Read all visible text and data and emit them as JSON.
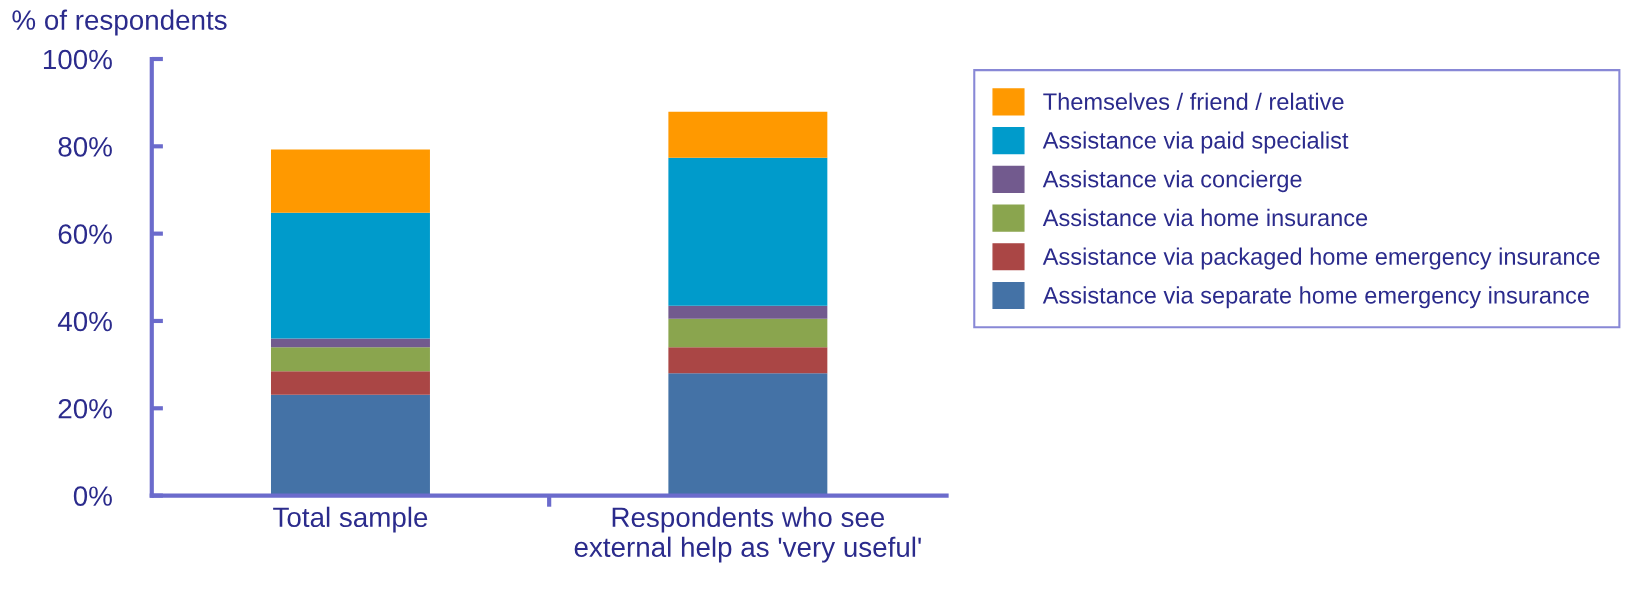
{
  "chart_data": {
    "type": "bar",
    "stacked": true,
    "ylabel": "% of respondents",
    "categories": [
      "Total sample",
      "Respondents who see\nexternal help as 'very useful'"
    ],
    "series": [
      {
        "name": "Assistance via separate home emergency insurance",
        "color": "#4472a6",
        "values": [
          23.1,
          28.0
        ]
      },
      {
        "name": "Assistance via packaged home emergency insurance",
        "color": "#aa4645",
        "values": [
          5.4,
          6.0
        ]
      },
      {
        "name": "Assistance via home insurance",
        "color": "#8aa54e",
        "values": [
          5.5,
          6.5
        ]
      },
      {
        "name": "Assistance via concierge",
        "color": "#725a8e",
        "values": [
          2.0,
          3.0
        ]
      },
      {
        "name": "Assistance via paid specialist",
        "color": "#009bcb",
        "values": [
          28.8,
          33.9
        ]
      },
      {
        "name": "Themselves / friend / relative",
        "color": "#ff9900",
        "values": [
          14.5,
          10.5
        ]
      }
    ],
    "ylim": [
      0,
      100
    ],
    "yticks": [
      {
        "value": 0,
        "label": "0%"
      },
      {
        "value": 20,
        "label": "20%"
      },
      {
        "value": 40,
        "label": "40%"
      },
      {
        "value": 60,
        "label": "60%"
      },
      {
        "value": 80,
        "label": "80%"
      },
      {
        "value": 100,
        "label": "100%"
      }
    ],
    "grid": false,
    "legend": "right"
  }
}
